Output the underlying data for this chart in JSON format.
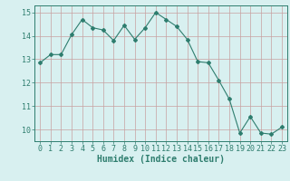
{
  "x": [
    0,
    1,
    2,
    3,
    4,
    5,
    6,
    7,
    8,
    9,
    10,
    11,
    12,
    13,
    14,
    15,
    16,
    17,
    18,
    19,
    20,
    21,
    22,
    23
  ],
  "y": [
    12.85,
    13.2,
    13.2,
    14.05,
    14.7,
    14.35,
    14.25,
    13.8,
    14.45,
    13.85,
    14.35,
    15.0,
    14.7,
    14.4,
    13.85,
    12.9,
    12.85,
    12.1,
    11.3,
    9.85,
    10.55,
    9.85,
    9.8,
    10.1
  ],
  "line_color": "#2e7d6e",
  "marker": "D",
  "marker_size": 2,
  "bg_color": "#d8f0f0",
  "grid_color": "#b8d8d8",
  "xlabel": "Humidex (Indice chaleur)",
  "ylim": [
    9.5,
    15.3
  ],
  "xlim": [
    -0.5,
    23.5
  ],
  "yticks": [
    10,
    11,
    12,
    13,
    14,
    15
  ],
  "xticks": [
    0,
    1,
    2,
    3,
    4,
    5,
    6,
    7,
    8,
    9,
    10,
    11,
    12,
    13,
    14,
    15,
    16,
    17,
    18,
    19,
    20,
    21,
    22,
    23
  ],
  "tick_fontsize": 6,
  "xlabel_fontsize": 7,
  "tick_color": "#2e7d6e",
  "axis_color": "#2e7d6e",
  "grid_major_color": "#c8a0a0",
  "grid_minor_color": "#d4b8b8"
}
